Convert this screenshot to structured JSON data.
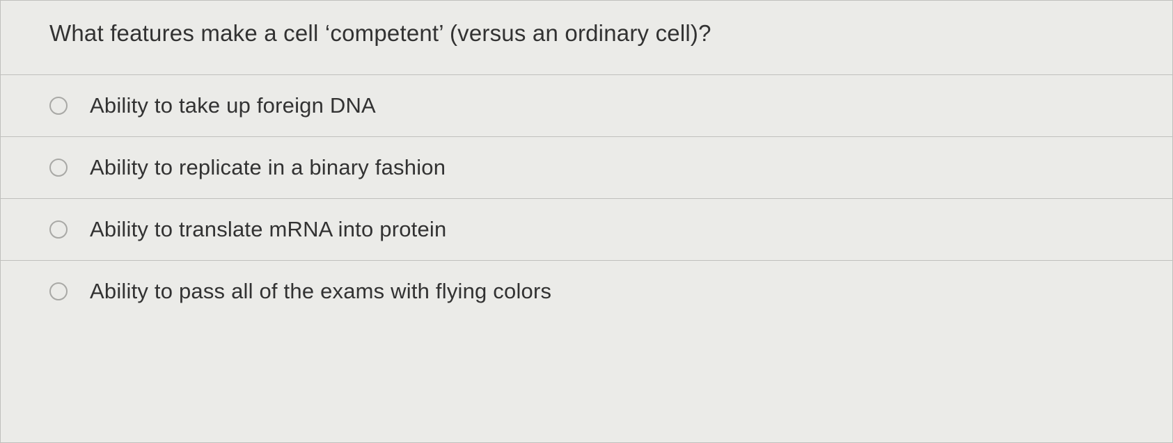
{
  "question": {
    "text": "What features make a cell ‘competent’ (versus an ordinary cell)?",
    "options": [
      {
        "label": "Ability to take up foreign DNA"
      },
      {
        "label": "Ability to replicate in a binary fashion"
      },
      {
        "label": "Ability to translate mRNA into protein"
      },
      {
        "label": "Ability to pass all of the exams with flying colors"
      }
    ]
  },
  "styling": {
    "background_color": "#e8e8e5",
    "card_background": "#ebebe8",
    "border_color": "#c0c0bd",
    "text_color": "#323232",
    "radio_border_color": "#a8a8a5",
    "question_fontsize": 33,
    "option_fontsize": 31
  }
}
